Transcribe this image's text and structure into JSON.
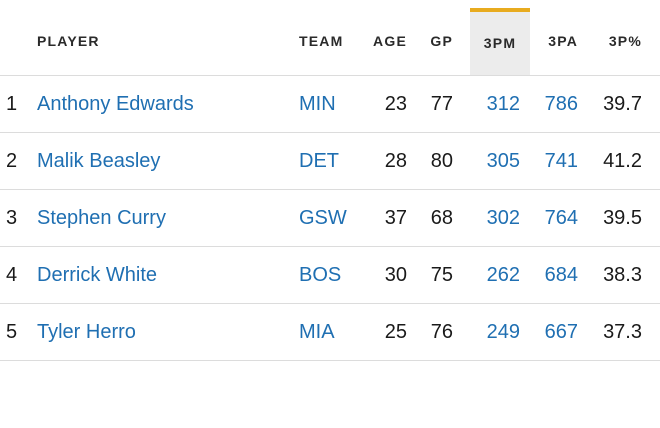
{
  "table": {
    "headers": {
      "player": "PLAYER",
      "team": "TEAM",
      "age": "AGE",
      "gp": "GP",
      "threepm": "3PM",
      "threepa": "3PA",
      "threepct": "3P%"
    },
    "sorted_column": "3PM",
    "colors": {
      "link": "#1f6fb2",
      "sort_accent": "#e8ab1f",
      "sorted_header_bg": "#ececec"
    },
    "rows": [
      {
        "rank": "1",
        "player": "Anthony Edwards",
        "team": "MIN",
        "age": "23",
        "gp": "77",
        "threepm": "312",
        "threepa": "786",
        "threepct": "39.7"
      },
      {
        "rank": "2",
        "player": "Malik Beasley",
        "team": "DET",
        "age": "28",
        "gp": "80",
        "threepm": "305",
        "threepa": "741",
        "threepct": "41.2"
      },
      {
        "rank": "3",
        "player": "Stephen Curry",
        "team": "GSW",
        "age": "37",
        "gp": "68",
        "threepm": "302",
        "threepa": "764",
        "threepct": "39.5"
      },
      {
        "rank": "4",
        "player": "Derrick White",
        "team": "BOS",
        "age": "30",
        "gp": "75",
        "threepm": "262",
        "threepa": "684",
        "threepct": "38.3"
      },
      {
        "rank": "5",
        "player": "Tyler Herro",
        "team": "MIA",
        "age": "25",
        "gp": "76",
        "threepm": "249",
        "threepa": "667",
        "threepct": "37.3"
      }
    ]
  }
}
